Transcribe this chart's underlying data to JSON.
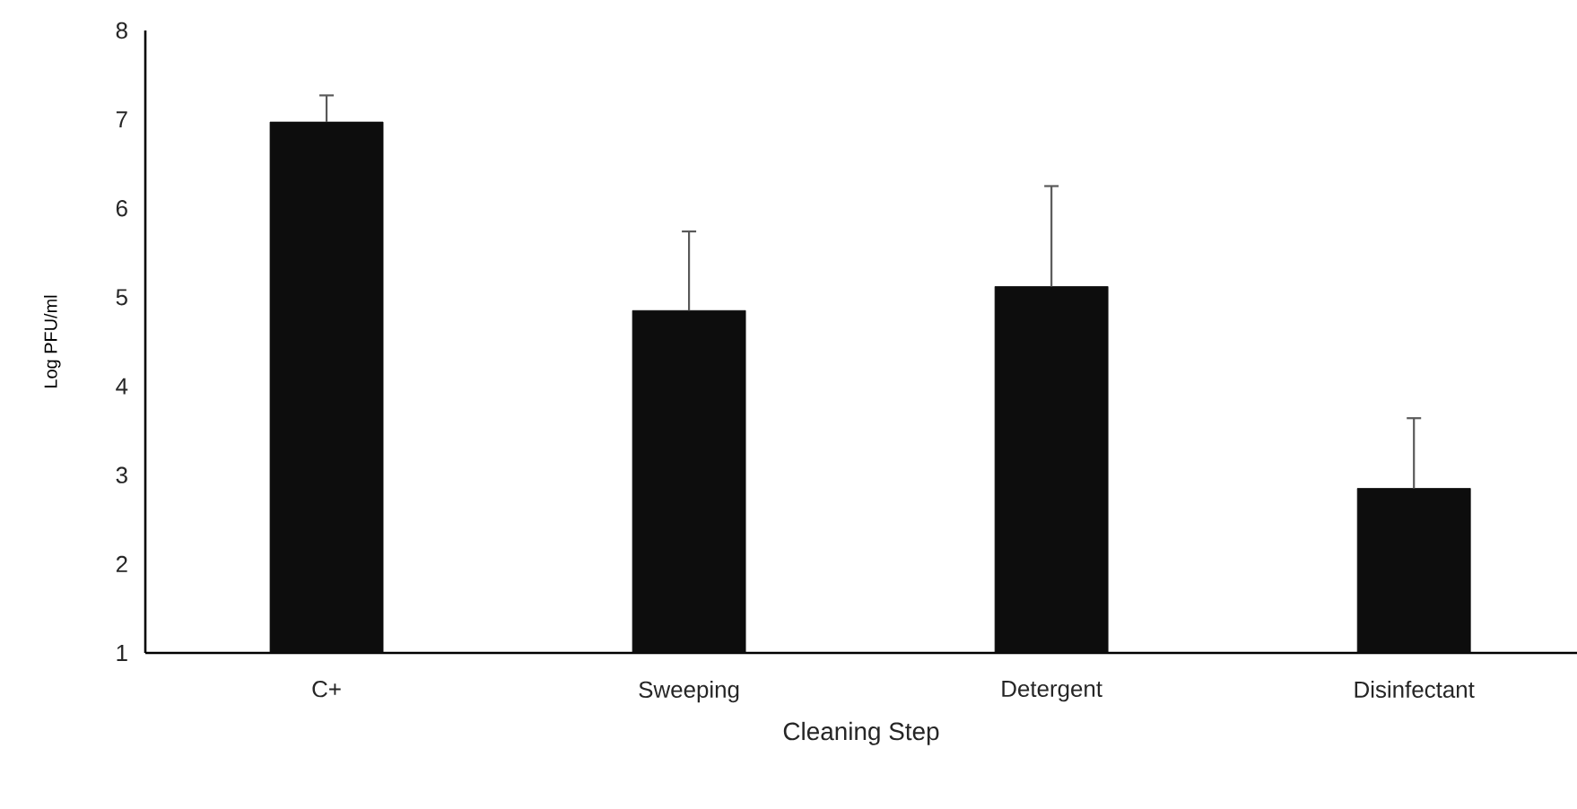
{
  "chart_data": {
    "type": "bar",
    "xlabel": "Cleaning Step",
    "ylabel": "Log PFU/ml",
    "categories": [
      "C+",
      "Sweeping",
      "Detergent",
      "Disinfectant"
    ],
    "values": [
      6.97,
      4.85,
      5.12,
      2.85
    ],
    "errors": [
      [
        6.97,
        7.27
      ],
      [
        4.85,
        5.74
      ],
      [
        5.12,
        6.25
      ],
      [
        2.85,
        3.64
      ]
    ],
    "color": "#0d0d0d",
    "ylim": [
      1,
      8
    ],
    "yticks": [
      1,
      2,
      3,
      4,
      5,
      6,
      7,
      8
    ],
    "grid": false
  }
}
